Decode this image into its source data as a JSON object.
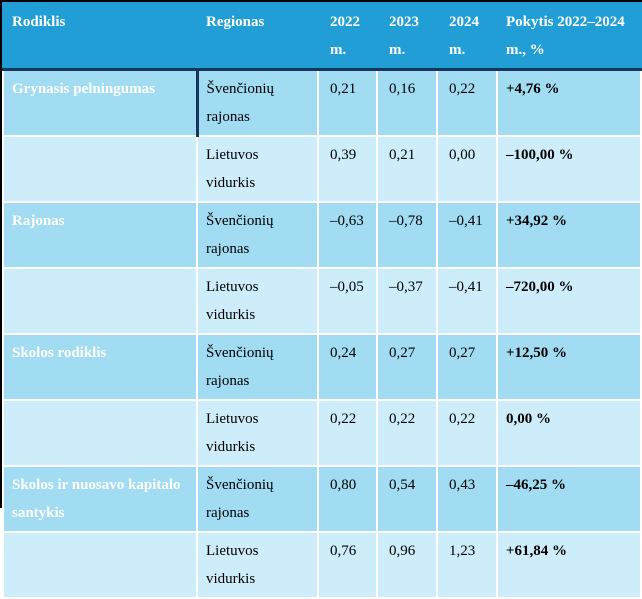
{
  "table": {
    "columns": [
      "Rodiklis",
      "Regionas",
      "2022 m.",
      "2023 m.",
      "2024 m.",
      "Pokytis 2022–2024 m., %"
    ],
    "rows": [
      {
        "indicator": "Grynasis pelningumas",
        "region": "Švenčionių rajonas",
        "v2022": "0,21",
        "v2023": "0,16",
        "v2024": "0,22",
        "change": "+4,76 %"
      },
      {
        "indicator": "",
        "region": "Lietuvos vidurkis",
        "v2022": "0,39",
        "v2023": "0,21",
        "v2024": "0,00",
        "change": "–100,00 %"
      },
      {
        "indicator": "Rajonas",
        "region": "Švenčionių rajonas",
        "v2022": "–0,63",
        "v2023": "–0,78",
        "v2024": "–0,41",
        "change": "+34,92 %"
      },
      {
        "indicator": "",
        "region": "Lietuvos vidurkis",
        "v2022": "–0,05",
        "v2023": "–0,37",
        "v2024": "–0,41",
        "change": "–720,00 %"
      },
      {
        "indicator": "Skolos rodiklis",
        "region": "Švenčionių rajonas",
        "v2022": "0,24",
        "v2023": "0,27",
        "v2024": "0,27",
        "change": "+12,50 %"
      },
      {
        "indicator": "",
        "region": "Lietuvos vidurkis",
        "v2022": "0,22",
        "v2023": "0,22",
        "v2024": "0,22",
        "change": "0,00 %"
      },
      {
        "indicator": "Skolos ir nuosavo kapitalo santykis",
        "region": "Švenčionių rajonas",
        "v2022": "0,80",
        "v2023": "0,54",
        "v2024": "0,43",
        "change": "–46,25 %"
      },
      {
        "indicator": "",
        "region": "Lietuvos vidurkis",
        "v2022": "0,76",
        "v2023": "0,96",
        "v2024": "1,23",
        "change": "+61,84 %"
      }
    ]
  },
  "colors": {
    "header_bg": "#219ED6",
    "row_odd_bg": "#A2DCF2",
    "row_even_bg": "#CEEDFA",
    "header_text": "#FFFFFF",
    "body_text": "#000000",
    "divider_dark": "#17365D",
    "outer_border": "#000000",
    "cell_gap": "#FFFFFF"
  }
}
